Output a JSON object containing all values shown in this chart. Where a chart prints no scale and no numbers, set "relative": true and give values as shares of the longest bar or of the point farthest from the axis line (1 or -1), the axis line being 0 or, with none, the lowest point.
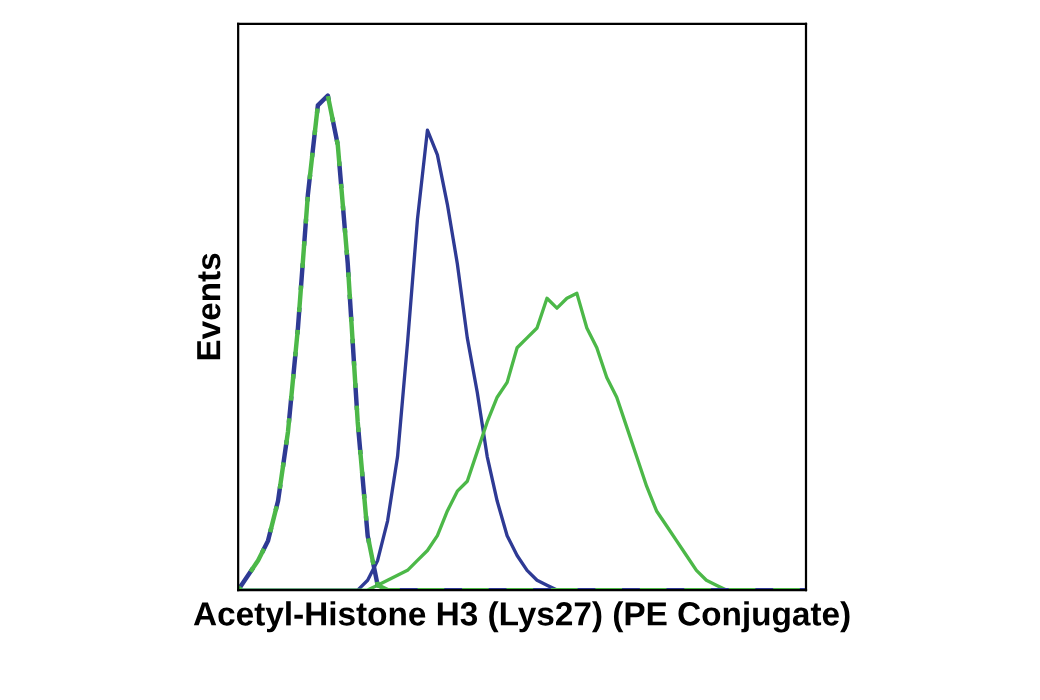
{
  "chart_data": {
    "type": "line",
    "relative": true,
    "xlabel": "Acetyl-Histone H3 (Lys27) (PE Conjugate)",
    "ylabel": "Events",
    "marker": "none",
    "categories": [
      null,
      null,
      null,
      null,
      null,
      null,
      null,
      null,
      null,
      null,
      null,
      null,
      null,
      null,
      null,
      null,
      null,
      null,
      null,
      null,
      null,
      null,
      null,
      null,
      null,
      null,
      null,
      null,
      null,
      null,
      null,
      null,
      null,
      null,
      null,
      null,
      null,
      null,
      null,
      null,
      null,
      null,
      null,
      null,
      null,
      null,
      null,
      null,
      null,
      null,
      null,
      null,
      null,
      null,
      null,
      null,
      null,
      null
    ],
    "series": [
      {
        "color": "#2e3a94",
        "line_style": "solid",
        "values": [
          0,
          0,
          0,
          0,
          0,
          0,
          0,
          0,
          0,
          0,
          0,
          0,
          0,
          0.02,
          0.06,
          0.14,
          0.27,
          0.5,
          0.75,
          0.93,
          0.88,
          0.78,
          0.66,
          0.51,
          0.4,
          0.27,
          0.18,
          0.11,
          0.07,
          0.04,
          0.02,
          0.01,
          0,
          0,
          0,
          0,
          0,
          0,
          0,
          0,
          0,
          0,
          0,
          0,
          0,
          0,
          0,
          0,
          0,
          0,
          0,
          0,
          0,
          0,
          0,
          0,
          0,
          0
        ]
      },
      {
        "color": "#4cb848",
        "line_style": "solid",
        "values": [
          0,
          0,
          0,
          0,
          0,
          0,
          0,
          0,
          0,
          0,
          0,
          0,
          0,
          0,
          0.01,
          0.02,
          0.03,
          0.04,
          0.06,
          0.08,
          0.11,
          0.16,
          0.2,
          0.22,
          0.28,
          0.34,
          0.39,
          0.42,
          0.49,
          0.51,
          0.53,
          0.59,
          0.57,
          0.59,
          0.6,
          0.53,
          0.49,
          0.43,
          0.39,
          0.33,
          0.27,
          0.21,
          0.16,
          0.13,
          0.1,
          0.07,
          0.04,
          0.02,
          0.01,
          0,
          0,
          0,
          0,
          0,
          0,
          0,
          0,
          0
        ]
      },
      {
        "color": "#2e3a94",
        "line_style": "dashed",
        "values": [
          0,
          0.03,
          0.06,
          0.1,
          0.18,
          0.32,
          0.53,
          0.8,
          0.98,
          1,
          0.9,
          0.66,
          0.34,
          0.11,
          0.01,
          0,
          0,
          0,
          0,
          0,
          0,
          0,
          0,
          0,
          0,
          0,
          0,
          0,
          0,
          0,
          0,
          0,
          0,
          0,
          0,
          0,
          0,
          0,
          0,
          0,
          0,
          0,
          0,
          0,
          0,
          0,
          0,
          0,
          0,
          0,
          0,
          0,
          0,
          0,
          0,
          0,
          0,
          0
        ]
      },
      {
        "color": "#4cb848",
        "line_style": "dashed",
        "values": [
          0,
          0.03,
          0.06,
          0.1,
          0.18,
          0.32,
          0.53,
          0.8,
          0.98,
          1,
          0.9,
          0.66,
          0.34,
          0.11,
          0.01,
          0,
          0,
          0,
          0,
          0,
          0,
          0,
          0,
          0,
          0,
          0,
          0,
          0,
          0,
          0,
          0,
          0,
          0,
          0,
          0,
          0,
          0,
          0,
          0,
          0,
          0,
          0,
          0,
          0,
          0,
          0,
          0,
          0,
          0,
          0,
          0,
          0,
          0,
          0,
          0,
          0,
          0,
          0
        ]
      }
    ]
  }
}
